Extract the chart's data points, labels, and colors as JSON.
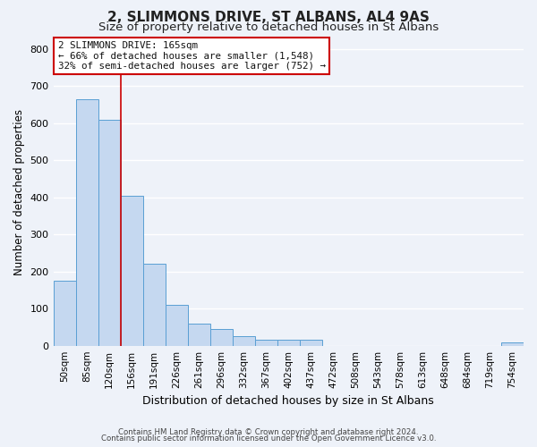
{
  "title": "2, SLIMMONS DRIVE, ST ALBANS, AL4 9AS",
  "subtitle": "Size of property relative to detached houses in St Albans",
  "xlabel": "Distribution of detached houses by size in St Albans",
  "ylabel": "Number of detached properties",
  "bar_color": "#c5d8f0",
  "bar_edge_color": "#5a9fd4",
  "bin_labels": [
    "50sqm",
    "85sqm",
    "120sqm",
    "156sqm",
    "191sqm",
    "226sqm",
    "261sqm",
    "296sqm",
    "332sqm",
    "367sqm",
    "402sqm",
    "437sqm",
    "472sqm",
    "508sqm",
    "543sqm",
    "578sqm",
    "613sqm",
    "648sqm",
    "684sqm",
    "719sqm",
    "754sqm"
  ],
  "bin_values": [
    175,
    665,
    610,
    405,
    220,
    110,
    60,
    45,
    25,
    15,
    15,
    15,
    0,
    0,
    0,
    0,
    0,
    0,
    0,
    0,
    10
  ],
  "ylim": [
    0,
    830
  ],
  "yticks": [
    0,
    100,
    200,
    300,
    400,
    500,
    600,
    700,
    800
  ],
  "vline_x": 2.5,
  "vline_color": "#cc0000",
  "annotation_text": "2 SLIMMONS DRIVE: 165sqm\n← 66% of detached houses are smaller (1,548)\n32% of semi-detached houses are larger (752) →",
  "annotation_box_color": "#ffffff",
  "annotation_box_edge_color": "#cc0000",
  "footer1": "Contains HM Land Registry data © Crown copyright and database right 2024.",
  "footer2": "Contains public sector information licensed under the Open Government Licence v3.0.",
  "background_color": "#eef2f9",
  "plot_bg_color": "#eef2f9",
  "grid_color": "#ffffff",
  "title_fontsize": 11,
  "subtitle_fontsize": 9.5
}
